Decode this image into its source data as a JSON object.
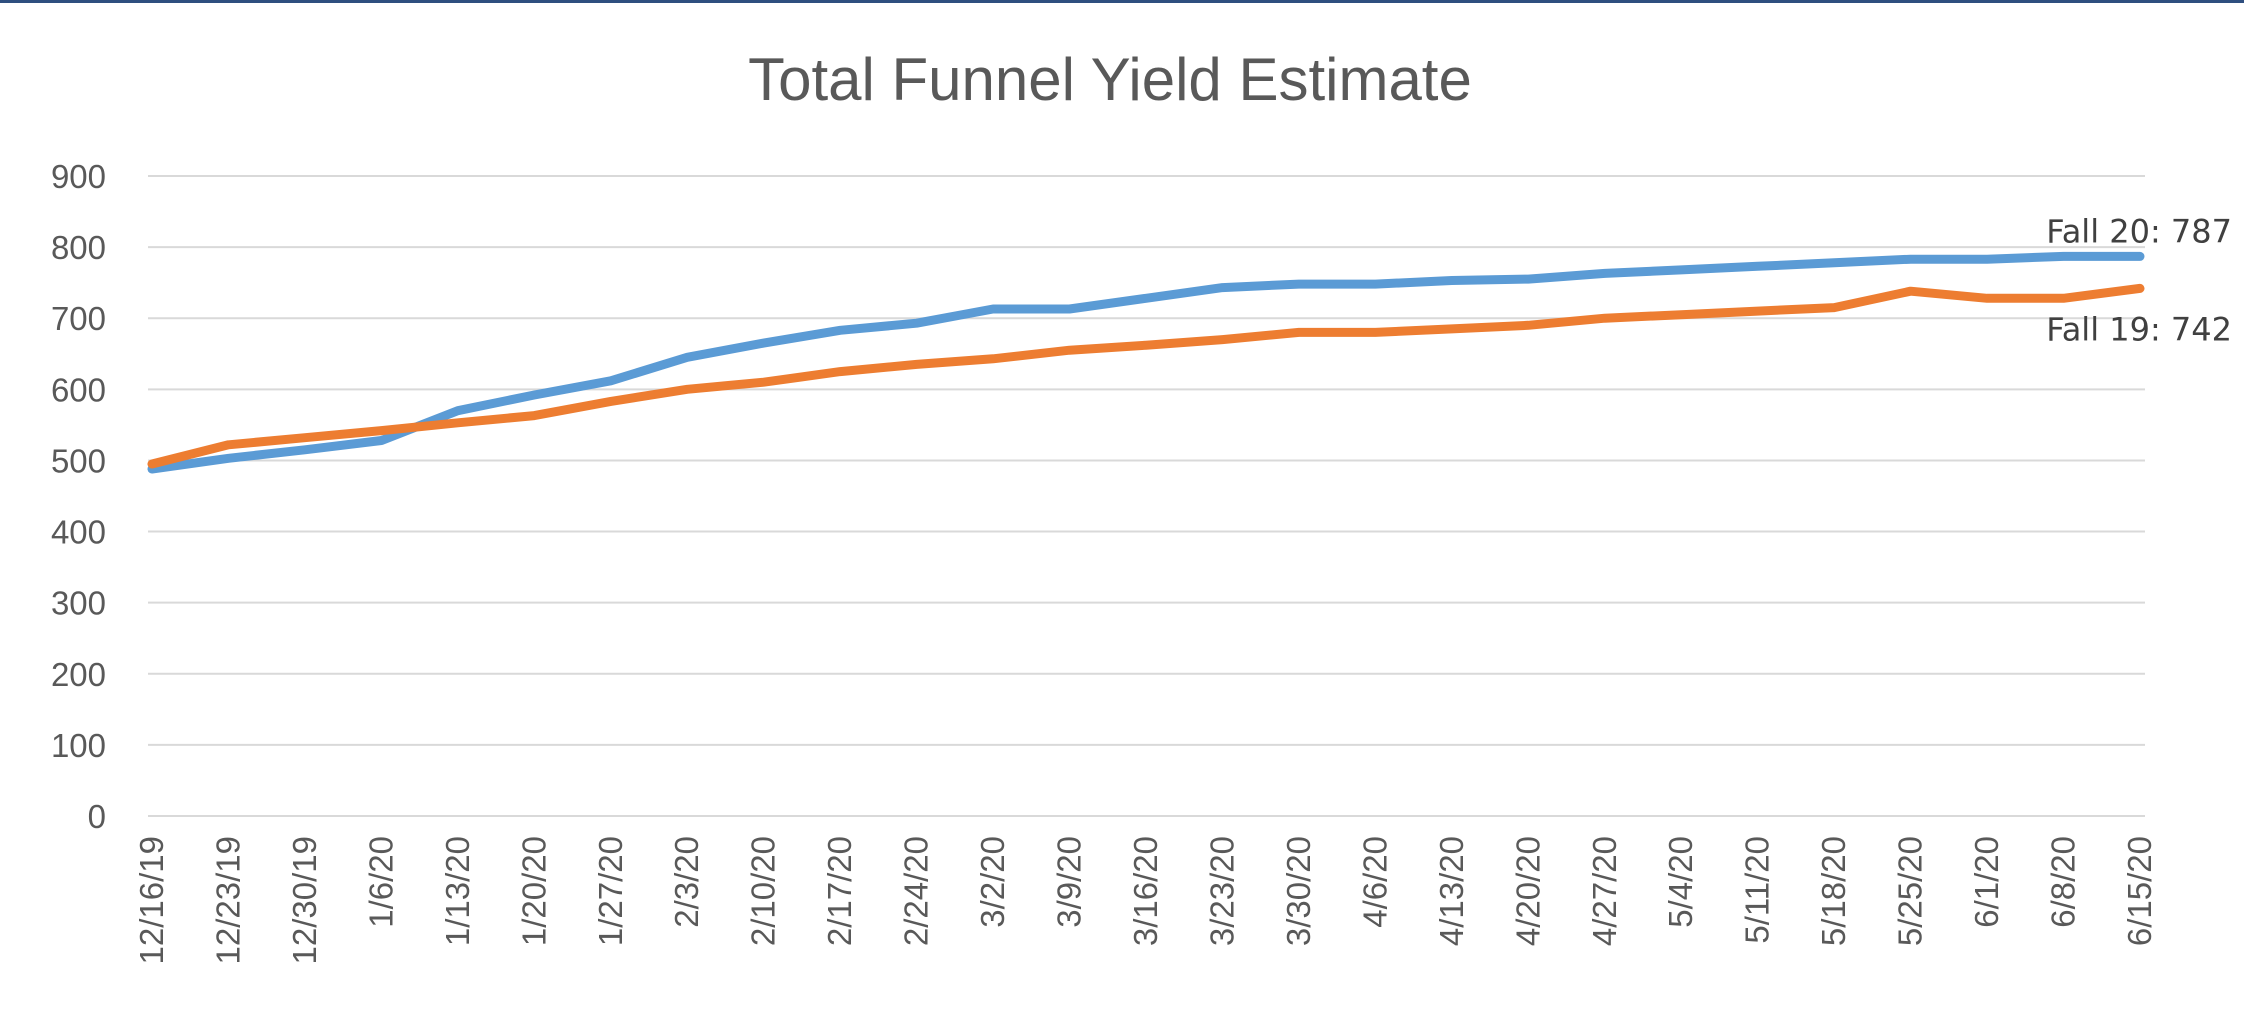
{
  "chart_data": {
    "type": "line",
    "title": "Total Funnel Yield Estimate",
    "xlabel": "",
    "ylabel": "",
    "ylim": [
      0,
      900
    ],
    "yticks": [
      0,
      100,
      200,
      300,
      400,
      500,
      600,
      700,
      800,
      900
    ],
    "grid": true,
    "legend": "none",
    "categories": [
      "12/16/19",
      "12/23/19",
      "12/30/19",
      "1/6/20",
      "1/13/20",
      "1/20/20",
      "1/27/20",
      "2/3/20",
      "2/10/20",
      "2/17/20",
      "2/24/20",
      "3/2/20",
      "3/9/20",
      "3/16/20",
      "3/23/20",
      "3/30/20",
      "4/6/20",
      "4/13/20",
      "4/20/20",
      "4/27/20",
      "5/4/20",
      "5/11/20",
      "5/18/20",
      "5/25/20",
      "6/1/20",
      "6/8/20",
      "6/15/20"
    ],
    "series": [
      {
        "color": "#5b9bd5",
        "values": [
          488,
          503,
          515,
          528,
          570,
          592,
          612,
          645,
          665,
          683,
          693,
          713,
          713,
          728,
          743,
          748,
          748,
          753,
          755,
          763,
          768,
          773,
          778,
          783,
          783,
          787,
          787
        ],
        "end_label": "Fall 20: 787"
      },
      {
        "color": "#ed7d31",
        "values": [
          495,
          522,
          532,
          542,
          553,
          563,
          583,
          600,
          610,
          625,
          635,
          643,
          655,
          662,
          670,
          680,
          680,
          685,
          690,
          700,
          705,
          710,
          715,
          738,
          728,
          728,
          742
        ],
        "end_label": "Fall 19: 742"
      }
    ]
  }
}
